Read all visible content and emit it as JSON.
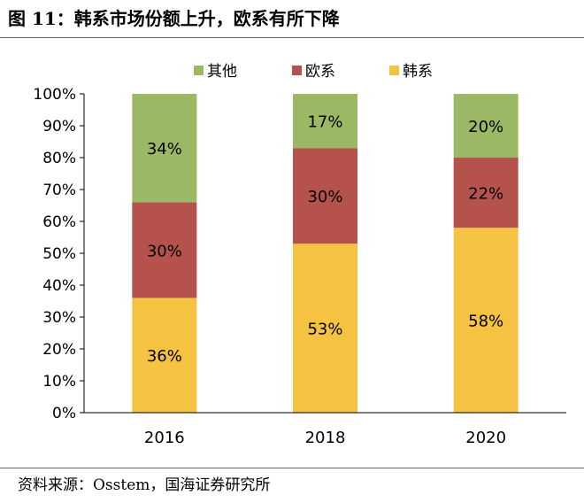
{
  "title": "图 11：韩系市场份额上升，欧系有所下降",
  "source": "资料来源：Osstem，国海证券研究所",
  "chart_data": {
    "type": "bar",
    "stacked": true,
    "categories": [
      "2016",
      "2018",
      "2020"
    ],
    "series": [
      {
        "name": "韩系",
        "color": "#F6C242",
        "values": [
          36,
          53,
          58
        ],
        "labels": [
          "36%",
          "53%",
          "58%"
        ]
      },
      {
        "name": "欧系",
        "color": "#B5524C",
        "values": [
          30,
          30,
          22
        ],
        "labels": [
          "30%",
          "30%",
          "22%"
        ]
      },
      {
        "name": "其他",
        "color": "#9BB865",
        "values": [
          34,
          17,
          20
        ],
        "labels": [
          "34%",
          "17%",
          "20%"
        ]
      }
    ],
    "legend_order": [
      "其他",
      "欧系",
      "韩系"
    ],
    "legend_position": "top",
    "ylim": [
      0,
      100
    ],
    "y_ticks": [
      "0%",
      "10%",
      "20%",
      "30%",
      "40%",
      "50%",
      "60%",
      "70%",
      "80%",
      "90%",
      "100%"
    ],
    "grid": false
  }
}
